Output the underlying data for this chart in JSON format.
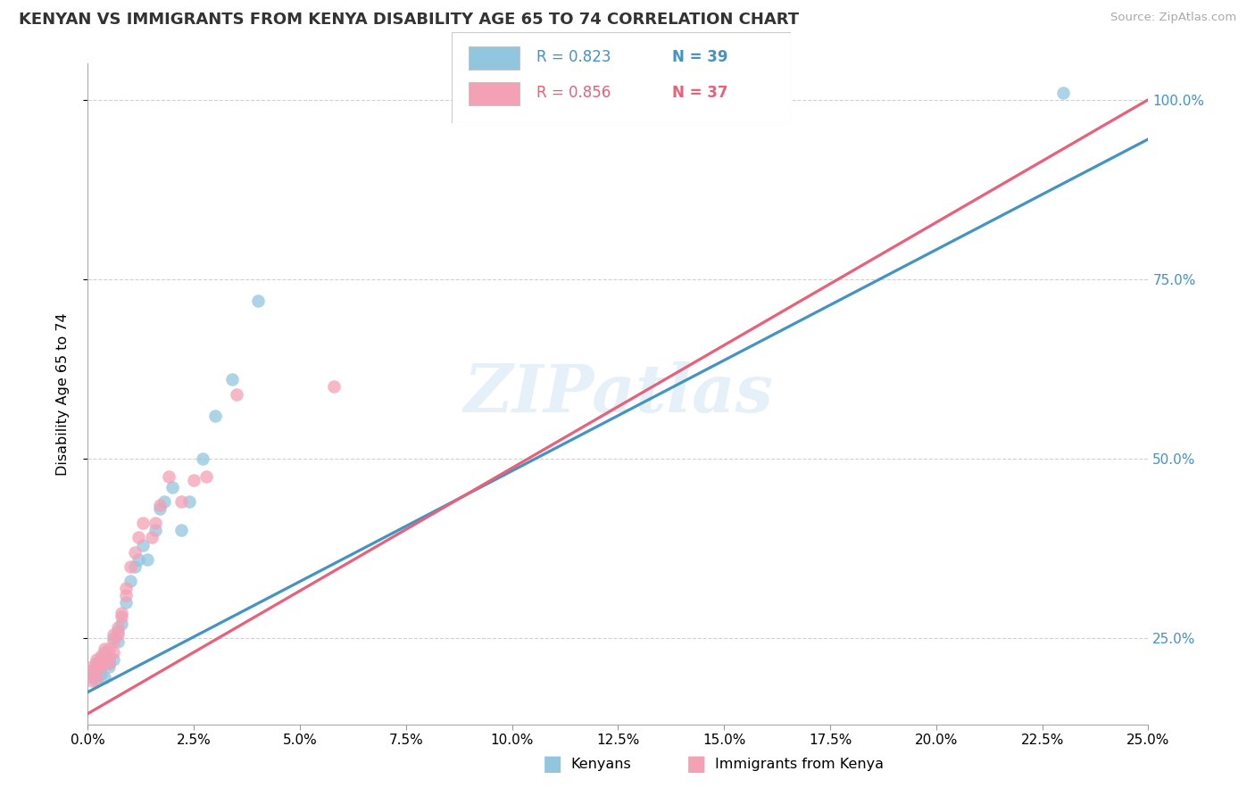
{
  "title": "KENYAN VS IMMIGRANTS FROM KENYA DISABILITY AGE 65 TO 74 CORRELATION CHART",
  "source": "Source: ZipAtlas.com",
  "ylabel_label": "Disability Age 65 to 74",
  "xlim": [
    0.0,
    0.25
  ],
  "ylim": [
    0.13,
    1.05
  ],
  "xtick_labels": [
    "0.0%",
    "2.5%",
    "5.0%",
    "7.5%",
    "10.0%",
    "12.5%",
    "15.0%",
    "17.5%",
    "20.0%",
    "22.5%",
    "25.0%"
  ],
  "ytick_right_labels": [
    "25.0%",
    "50.0%",
    "75.0%",
    "100.0%"
  ],
  "ytick_vals": [
    0.25,
    0.5,
    0.75,
    1.0
  ],
  "legend_r1": "R = 0.823",
  "legend_n1": "N = 39",
  "legend_r2": "R = 0.856",
  "legend_n2": "N = 37",
  "kenyan_color": "#92c5de",
  "immigrant_color": "#f4a0b5",
  "line_color_kenyan": "#4393c3",
  "line_color_immigrant": "#e8607a",
  "watermark": "ZIPatlas",
  "line_kenyan_x0": 0.0,
  "line_kenyan_y0": 0.175,
  "line_kenyan_x1": 0.25,
  "line_kenyan_y1": 0.945,
  "line_immig_x0": 0.0,
  "line_immig_y0": 0.145,
  "line_immig_x1": 0.25,
  "line_immig_y1": 1.0,
  "kenyan_x": [
    0.001,
    0.001,
    0.001,
    0.002,
    0.002,
    0.002,
    0.002,
    0.003,
    0.003,
    0.003,
    0.003,
    0.004,
    0.004,
    0.004,
    0.005,
    0.005,
    0.005,
    0.006,
    0.006,
    0.007,
    0.007,
    0.008,
    0.009,
    0.01,
    0.011,
    0.012,
    0.013,
    0.014,
    0.016,
    0.017,
    0.018,
    0.02,
    0.022,
    0.024,
    0.027,
    0.03,
    0.034,
    0.04,
    0.23
  ],
  "kenyan_y": [
    0.195,
    0.2,
    0.205,
    0.19,
    0.2,
    0.21,
    0.215,
    0.2,
    0.21,
    0.22,
    0.215,
    0.195,
    0.22,
    0.23,
    0.21,
    0.215,
    0.22,
    0.22,
    0.25,
    0.26,
    0.245,
    0.27,
    0.3,
    0.33,
    0.35,
    0.36,
    0.38,
    0.36,
    0.4,
    0.43,
    0.44,
    0.46,
    0.4,
    0.44,
    0.5,
    0.56,
    0.61,
    0.72,
    1.01
  ],
  "immigrant_x": [
    0.001,
    0.001,
    0.001,
    0.002,
    0.002,
    0.002,
    0.002,
    0.003,
    0.003,
    0.003,
    0.004,
    0.004,
    0.005,
    0.005,
    0.005,
    0.006,
    0.006,
    0.006,
    0.007,
    0.007,
    0.008,
    0.008,
    0.009,
    0.009,
    0.01,
    0.011,
    0.012,
    0.013,
    0.015,
    0.016,
    0.017,
    0.019,
    0.022,
    0.025,
    0.028,
    0.035,
    0.058
  ],
  "immigrant_y": [
    0.19,
    0.2,
    0.21,
    0.195,
    0.21,
    0.215,
    0.22,
    0.21,
    0.215,
    0.225,
    0.22,
    0.235,
    0.215,
    0.225,
    0.235,
    0.23,
    0.245,
    0.255,
    0.255,
    0.265,
    0.28,
    0.285,
    0.31,
    0.32,
    0.35,
    0.37,
    0.39,
    0.41,
    0.39,
    0.41,
    0.435,
    0.475,
    0.44,
    0.47,
    0.475,
    0.59,
    0.6
  ]
}
